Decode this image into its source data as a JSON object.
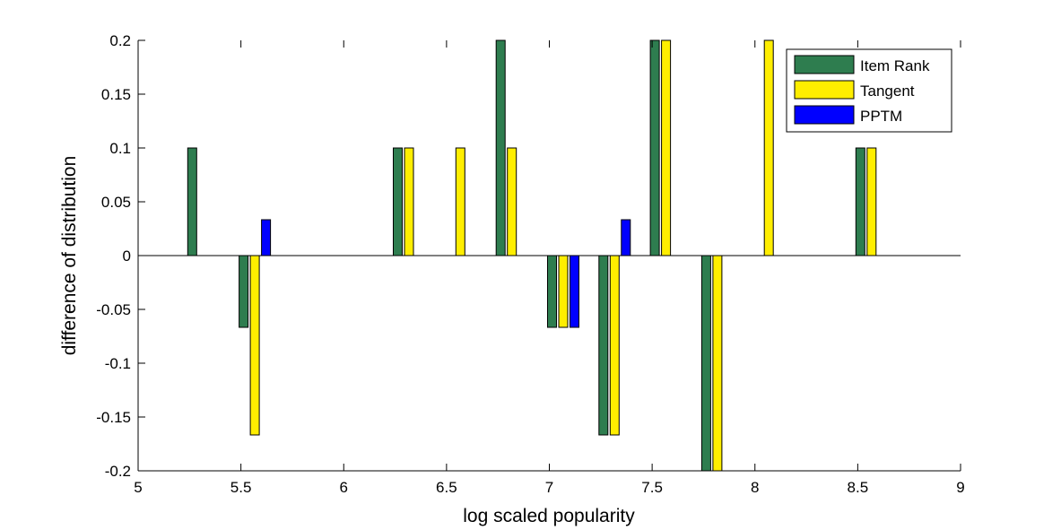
{
  "chart_data": {
    "type": "bar",
    "title": "",
    "xlabel": "log scaled popularity",
    "ylabel": "difference of distribution",
    "xlim": [
      5,
      9
    ],
    "ylim": [
      -0.2,
      0.2
    ],
    "xticks": [
      "5",
      "5.5",
      "6",
      "6.5",
      "7",
      "7.5",
      "8",
      "8.5",
      "9"
    ],
    "yticks": [
      "-0.2",
      "-0.15",
      "-0.1",
      "-0.05",
      "0",
      "0.05",
      "0.1",
      "0.15",
      "0.2"
    ],
    "grid": false,
    "legend_position": "top-right",
    "x": [
      5.375,
      5.625,
      5.875,
      6.125,
      6.375,
      6.625,
      6.875,
      7.125,
      7.375,
      7.625,
      7.875,
      8.125,
      8.375,
      8.625
    ],
    "series": [
      {
        "name": "Item Rank",
        "color": "#2e7d4f",
        "values": [
          0.1,
          -0.0667,
          0,
          0,
          0.1,
          0,
          0.2,
          -0.0667,
          -0.1667,
          0.2,
          -0.2,
          0,
          0,
          0.1
        ]
      },
      {
        "name": "Tangent",
        "color": "#ffee00",
        "values": [
          0,
          -0.1667,
          0,
          0,
          0.1,
          0.1,
          0.1,
          -0.0667,
          -0.1667,
          0.2,
          -0.2,
          0.2,
          0,
          0.1
        ]
      },
      {
        "name": "PPTM",
        "color": "#0000ff",
        "values": [
          0,
          0.0333,
          0,
          0,
          0,
          0,
          0,
          -0.0667,
          0.0333,
          0,
          0,
          0,
          0,
          0
        ]
      }
    ]
  }
}
